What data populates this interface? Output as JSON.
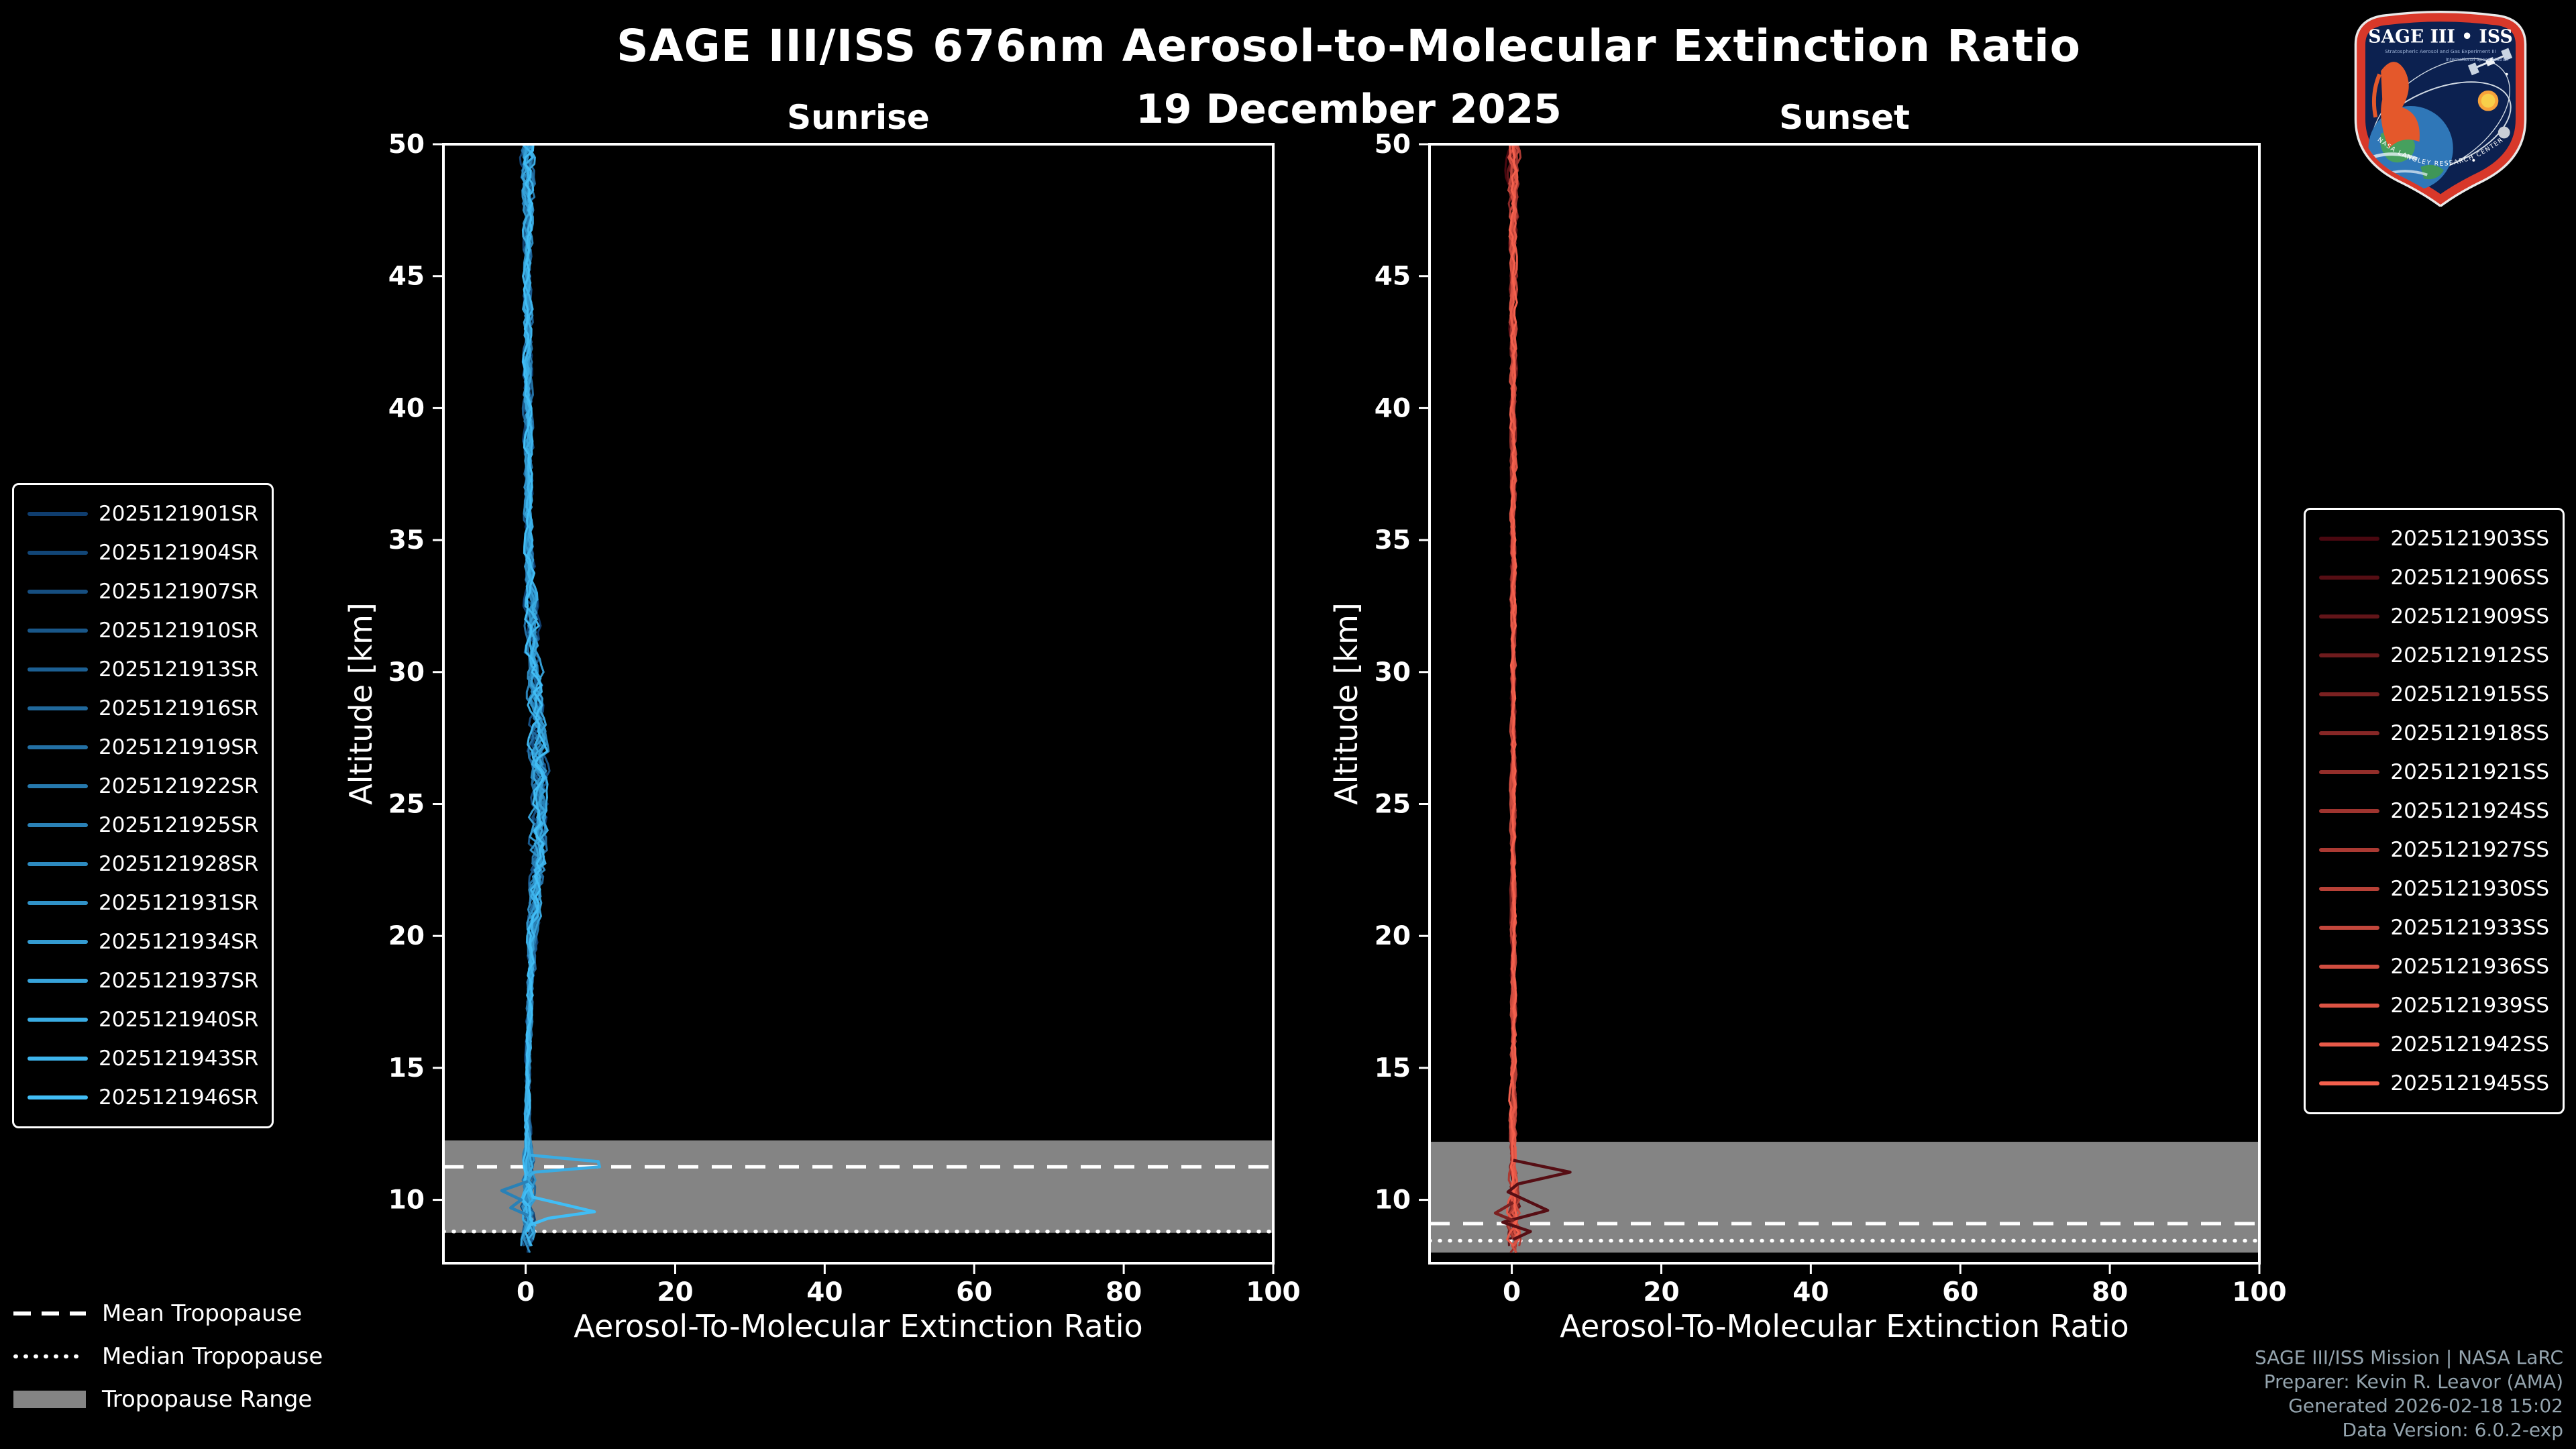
{
  "header": {
    "title": "SAGE III/ISS 676nm Aerosol-to-Molecular Extinction Ratio",
    "date": "19 December 2025"
  },
  "chart_data": [
    {
      "type": "line",
      "panel": "sunrise",
      "title": "Sunrise",
      "xlabel": "Aerosol-To-Molecular Extinction Ratio",
      "ylabel": "Altitude [km]",
      "xlim": [
        -11,
        100
      ],
      "ylim": [
        7.6,
        50
      ],
      "x_ticks": [
        0,
        20,
        40,
        60,
        80,
        100
      ],
      "y_ticks": [
        10,
        15,
        20,
        25,
        30,
        35,
        40,
        45,
        50
      ],
      "legend_position": "left outside",
      "grid": false,
      "seed": 7,
      "color_start": "#0f3d6e",
      "color_end": "#41bdf5",
      "series_names": [
        "2025121901SR",
        "2025121904SR",
        "2025121907SR",
        "2025121910SR",
        "2025121913SR",
        "2025121916SR",
        "2025121919SR",
        "2025121922SR",
        "2025121925SR",
        "2025121928SR",
        "2025121931SR",
        "2025121934SR",
        "2025121937SR",
        "2025121940SR",
        "2025121943SR",
        "2025121946SR"
      ],
      "base_profile": [
        [
          7.8,
          0.4
        ],
        [
          9,
          0.5
        ],
        [
          10,
          0.4
        ],
        [
          11,
          0.4
        ],
        [
          12,
          0.3
        ],
        [
          14,
          0.3
        ],
        [
          16,
          0.4
        ],
        [
          18,
          0.6
        ],
        [
          20,
          0.9
        ],
        [
          22,
          1.4
        ],
        [
          24,
          1.8
        ],
        [
          26,
          1.8
        ],
        [
          28,
          1.5
        ],
        [
          30,
          1.2
        ],
        [
          32,
          0.9
        ],
        [
          34,
          0.6
        ],
        [
          36,
          0.4
        ],
        [
          40,
          0.3
        ],
        [
          44,
          0.3
        ],
        [
          48,
          0.3
        ],
        [
          50,
          0.3
        ]
      ],
      "spread_profile": [
        [
          7.8,
          1.1
        ],
        [
          9,
          1.6
        ],
        [
          10,
          1.5
        ],
        [
          11,
          1.2
        ],
        [
          12,
          0.7
        ],
        [
          14,
          0.5
        ],
        [
          16,
          0.5
        ],
        [
          18,
          0.7
        ],
        [
          20,
          1.0
        ],
        [
          22,
          1.5
        ],
        [
          24,
          1.8
        ],
        [
          26,
          1.8
        ],
        [
          28,
          1.6
        ],
        [
          30,
          1.4
        ],
        [
          32,
          1.2
        ],
        [
          34,
          1.0
        ],
        [
          36,
          0.8
        ],
        [
          40,
          0.8
        ],
        [
          44,
          0.9
        ],
        [
          47,
          1.0
        ],
        [
          49,
          1.4
        ],
        [
          50,
          1.6
        ]
      ],
      "alt_bottom_min": 7.8,
      "alt_bottom_jitter": 1.0,
      "spikes": [
        {
          "series_index": 13,
          "points": [
            [
              11.7,
              0.4
            ],
            [
              11.45,
              9.7
            ],
            [
              11.25,
              9.9
            ],
            [
              11.05,
              1.2
            ],
            [
              10.9,
              0.3
            ]
          ]
        },
        {
          "series_index": 15,
          "points": [
            [
              10.55,
              0.4
            ],
            [
              10.1,
              1.0
            ],
            [
              9.55,
              9.2
            ],
            [
              9.3,
              3.0
            ],
            [
              9.05,
              0.6
            ],
            [
              8.8,
              0.2
            ]
          ]
        },
        {
          "series_index": 8,
          "points": [
            [
              10.7,
              0.3
            ],
            [
              10.35,
              -3.2
            ],
            [
              10.0,
              -0.6
            ],
            [
              9.7,
              -2.0
            ],
            [
              9.4,
              0.4
            ]
          ]
        }
      ],
      "tropopause": {
        "mean": 11.25,
        "median": 8.8,
        "range": [
          8.75,
          12.25
        ]
      }
    },
    {
      "type": "line",
      "panel": "sunset",
      "title": "Sunset",
      "xlabel": "Aerosol-To-Molecular Extinction Ratio",
      "ylabel": "Altitude [km]",
      "xlim": [
        -11,
        100
      ],
      "ylim": [
        7.6,
        50
      ],
      "x_ticks": [
        0,
        20,
        40,
        60,
        80,
        100
      ],
      "y_ticks": [
        10,
        15,
        20,
        25,
        30,
        35,
        40,
        45,
        50
      ],
      "legend_position": "right outside",
      "grid": false,
      "seed": 13,
      "color_start": "#4a0810",
      "color_end": "#f4604d",
      "series_names": [
        "2025121903SS",
        "2025121906SS",
        "2025121909SS",
        "2025121912SS",
        "2025121915SS",
        "2025121918SS",
        "2025121921SS",
        "2025121924SS",
        "2025121927SS",
        "2025121930SS",
        "2025121933SS",
        "2025121936SS",
        "2025121939SS",
        "2025121942SS",
        "2025121945SS"
      ],
      "base_profile": [
        [
          7.8,
          0.2
        ],
        [
          10,
          0.2
        ],
        [
          15,
          0.2
        ],
        [
          20,
          0.2
        ],
        [
          30,
          0.2
        ],
        [
          40,
          0.2
        ],
        [
          50,
          0.2
        ]
      ],
      "spread_profile": [
        [
          7.8,
          1.2
        ],
        [
          9,
          1.4
        ],
        [
          10,
          1.1
        ],
        [
          11,
          0.8
        ],
        [
          13,
          0.6
        ],
        [
          20,
          0.5
        ],
        [
          30,
          0.5
        ],
        [
          40,
          0.6
        ],
        [
          46,
          0.7
        ],
        [
          48.5,
          1.0
        ],
        [
          50,
          1.3
        ]
      ],
      "alt_bottom_min": 7.8,
      "alt_bottom_jitter": 1.0,
      "spikes": [
        {
          "series_index": 1,
          "points": [
            [
              11.5,
              0.2
            ],
            [
              11.05,
              7.8
            ],
            [
              10.6,
              0.8
            ],
            [
              10.3,
              -0.5
            ],
            [
              9.6,
              4.8
            ],
            [
              9.15,
              -1.2
            ],
            [
              8.8,
              2.5
            ],
            [
              8.5,
              0.2
            ]
          ]
        },
        {
          "series_index": 4,
          "points": [
            [
              9.9,
              0.2
            ],
            [
              9.5,
              -2.2
            ],
            [
              9.2,
              0.3
            ]
          ]
        }
      ],
      "tropopause": {
        "mean": 9.1,
        "median": 8.45,
        "range": [
          8.0,
          12.2
        ]
      }
    }
  ],
  "tropopause_legend": {
    "mean": "Mean Tropopause",
    "median": "Median Tropopause",
    "range": "Tropopause Range"
  },
  "footer": {
    "lines": [
      "SAGE III/ISS Mission | NASA LaRC",
      "Preparer: Kevin R. Leavor (AMA)",
      "Generated 2026-02-18 15:02",
      "Data Version: 6.0.2-exp"
    ]
  },
  "logo": {
    "title": "SAGE III • ISS",
    "subtitle_left": "Stratospheric Aerosol and Gas Experiment III",
    "subtitle_right": "International Space Station",
    "arc_text": "NASA LANGLEY RESEARCH CENTER"
  },
  "style": {
    "background": "#000000",
    "axis_color": "#ffffff",
    "band_color": "#848484",
    "footer_color": "#94a4ae"
  }
}
